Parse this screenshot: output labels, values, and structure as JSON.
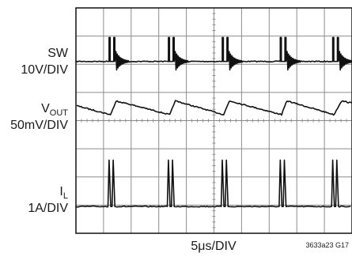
{
  "chart_data": {
    "type": "line",
    "title": "",
    "xlabel": "5μs/DIV",
    "figure_code": "3633a23 G17",
    "grid": true,
    "divisions": {
      "x": 10,
      "y": 8
    },
    "channels": [
      {
        "name": "SW",
        "scale": "10V/DIV",
        "baseline_div": 6.1,
        "pulse_height_div": 0.85
      },
      {
        "name_main": "V",
        "name_sub": "OUT",
        "scale": "50mV/DIV",
        "baseline_div": 4.35,
        "ripple_div": 0.35
      },
      {
        "name": "I",
        "name_sub": "L",
        "scale": "1A/DIV",
        "baseline_div": 0.95,
        "peak_div": 1.65
      }
    ],
    "switching_events_x_div": [
      1.25,
      3.4,
      5.35,
      7.45,
      9.35
    ],
    "channel_labels": {
      "sw_name": "SW",
      "sw_scale": "10V/DIV",
      "vout_main": "V",
      "vout_sub": "OUT",
      "vout_scale": "50mV/DIV",
      "il_main": "I",
      "il_sub": "L",
      "il_scale": "1A/DIV"
    }
  }
}
